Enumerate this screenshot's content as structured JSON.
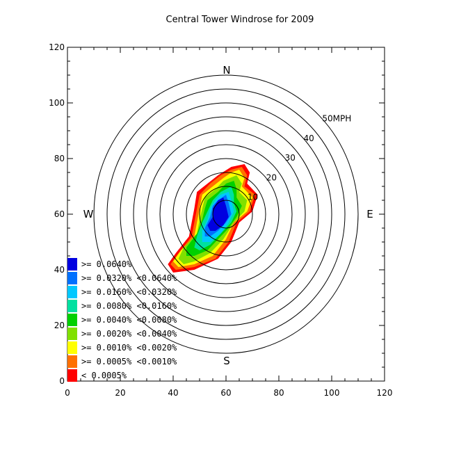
{
  "chart_data": {
    "type": "heatmap",
    "title": "Central Tower Windrose for 2009",
    "xlim": [
      0,
      120
    ],
    "ylim": [
      0,
      120
    ],
    "xticks": [
      "0",
      "20",
      "40",
      "60",
      "80",
      "100",
      "120"
    ],
    "yticks": [
      "0",
      "20",
      "40",
      "60",
      "80",
      "100",
      "120"
    ],
    "center": [
      60,
      60
    ],
    "ring_speeds_mph": [
      5,
      10,
      15,
      20,
      25,
      30,
      35,
      40,
      45,
      50
    ],
    "ring_labels": [
      {
        "speed": 10,
        "text": "10"
      },
      {
        "speed": 20,
        "text": "20"
      },
      {
        "speed": 30,
        "text": "30"
      },
      {
        "speed": 40,
        "text": "40"
      },
      {
        "speed": 50,
        "text": "50MPH"
      }
    ],
    "directions": {
      "north": "N",
      "south": "S",
      "east": "E",
      "west": "W"
    },
    "legend": [
      {
        "label": ">= 0.0640%",
        "color": "#0000e0"
      },
      {
        "label": ">= 0.0320% <0.0640%",
        "color": "#0070ff"
      },
      {
        "label": ">= 0.0160% <0.0320%",
        "color": "#00c8ff"
      },
      {
        "label": ">= 0.0080% <0.0160%",
        "color": "#00e0a0"
      },
      {
        "label": ">= 0.0040% <0.0080%",
        "color": "#00d000"
      },
      {
        "label": ">= 0.0020% <0.0040%",
        "color": "#80e000"
      },
      {
        "label": ">= 0.0010% <0.0020%",
        "color": "#ffff00"
      },
      {
        "label": ">= 0.0005% <0.0010%",
        "color": "#ff7000"
      },
      {
        "label": "< 0.0005%",
        "color": "#ff0000"
      }
    ],
    "levels": [
      {
        "color": "#ff0000",
        "points": [
          [
            67,
            78
          ],
          [
            69,
            75
          ],
          [
            68,
            71
          ],
          [
            72,
            67
          ],
          [
            70,
            61
          ],
          [
            65,
            57
          ],
          [
            62,
            50
          ],
          [
            57,
            44
          ],
          [
            48,
            40
          ],
          [
            40,
            39
          ],
          [
            38,
            42
          ],
          [
            41,
            46
          ],
          [
            46,
            52
          ],
          [
            47,
            57
          ],
          [
            48,
            62
          ],
          [
            49,
            68
          ],
          [
            53,
            71
          ],
          [
            57,
            74
          ],
          [
            62,
            77
          ]
        ]
      },
      {
        "color": "#ff7000",
        "points": [
          [
            66,
            77
          ],
          [
            68,
            74
          ],
          [
            67,
            70
          ],
          [
            71,
            67
          ],
          [
            69,
            61
          ],
          [
            64,
            57
          ],
          [
            61,
            50
          ],
          [
            56,
            44
          ],
          [
            48,
            41
          ],
          [
            41,
            40
          ],
          [
            39,
            42
          ],
          [
            42,
            46
          ],
          [
            47,
            52
          ],
          [
            48,
            57
          ],
          [
            49,
            62
          ],
          [
            50,
            67
          ],
          [
            54,
            71
          ],
          [
            58,
            74
          ],
          [
            62,
            76
          ]
        ]
      },
      {
        "color": "#ffff00",
        "points": [
          [
            65,
            76
          ],
          [
            67,
            73
          ],
          [
            66,
            70
          ],
          [
            70,
            66
          ],
          [
            68,
            61
          ],
          [
            63,
            57
          ],
          [
            60,
            51
          ],
          [
            55,
            45
          ],
          [
            48,
            42
          ],
          [
            42,
            41
          ],
          [
            40,
            43
          ],
          [
            43,
            47
          ],
          [
            48,
            52
          ],
          [
            49,
            57
          ],
          [
            50,
            62
          ],
          [
            51,
            67
          ],
          [
            55,
            70
          ],
          [
            59,
            73
          ],
          [
            62,
            75
          ]
        ]
      },
      {
        "color": "#80e000",
        "points": [
          [
            64,
            74
          ],
          [
            66,
            71
          ],
          [
            65,
            68
          ],
          [
            68,
            65
          ],
          [
            67,
            61
          ],
          [
            63,
            57
          ],
          [
            59,
            51
          ],
          [
            54,
            46
          ],
          [
            48,
            43
          ],
          [
            44,
            42
          ],
          [
            42,
            44
          ],
          [
            44,
            48
          ],
          [
            49,
            53
          ],
          [
            50,
            58
          ],
          [
            51,
            62
          ],
          [
            52,
            66
          ],
          [
            56,
            69
          ],
          [
            59,
            72
          ]
        ]
      },
      {
        "color": "#00d000",
        "points": [
          [
            63,
            72
          ],
          [
            64,
            69
          ],
          [
            64,
            66
          ],
          [
            66,
            63
          ],
          [
            64,
            59
          ],
          [
            61,
            55
          ],
          [
            57,
            51
          ],
          [
            53,
            47
          ],
          [
            48,
            45
          ],
          [
            45,
            45
          ],
          [
            45,
            48
          ],
          [
            49,
            53
          ],
          [
            51,
            58
          ],
          [
            52,
            62
          ],
          [
            53,
            65
          ],
          [
            57,
            68
          ],
          [
            60,
            71
          ]
        ]
      },
      {
        "color": "#00e0a0",
        "points": [
          [
            62,
            70
          ],
          [
            63,
            67
          ],
          [
            63,
            64
          ],
          [
            64,
            61
          ],
          [
            62,
            57
          ],
          [
            58,
            53
          ],
          [
            54,
            49
          ],
          [
            50,
            47
          ],
          [
            48,
            48
          ],
          [
            49,
            52
          ],
          [
            51,
            57
          ],
          [
            53,
            61
          ],
          [
            55,
            65
          ],
          [
            58,
            68
          ]
        ]
      },
      {
        "color": "#00c8ff",
        "points": [
          [
            61,
            68
          ],
          [
            62,
            65
          ],
          [
            63,
            61
          ],
          [
            61,
            57
          ],
          [
            58,
            53
          ],
          [
            54,
            50
          ],
          [
            51,
            50
          ],
          [
            51,
            54
          ],
          [
            53,
            58
          ],
          [
            54,
            62
          ],
          [
            56,
            65
          ],
          [
            58,
            67
          ]
        ]
      },
      {
        "color": "#0070ff",
        "points": [
          [
            60,
            67
          ],
          [
            61,
            64
          ],
          [
            62,
            60
          ],
          [
            60,
            57
          ],
          [
            57,
            54
          ],
          [
            54,
            52
          ],
          [
            52,
            52
          ],
          [
            52,
            55
          ],
          [
            54,
            59
          ],
          [
            55,
            63
          ],
          [
            57,
            65
          ]
        ]
      },
      {
        "color": "#0000e0",
        "points": [
          [
            59,
            66
          ],
          [
            60,
            63
          ],
          [
            61,
            59
          ],
          [
            59,
            56
          ],
          [
            56,
            54
          ],
          [
            54,
            54
          ],
          [
            53,
            56
          ],
          [
            55,
            59
          ],
          [
            55,
            62
          ],
          [
            57,
            65
          ]
        ]
      }
    ]
  }
}
